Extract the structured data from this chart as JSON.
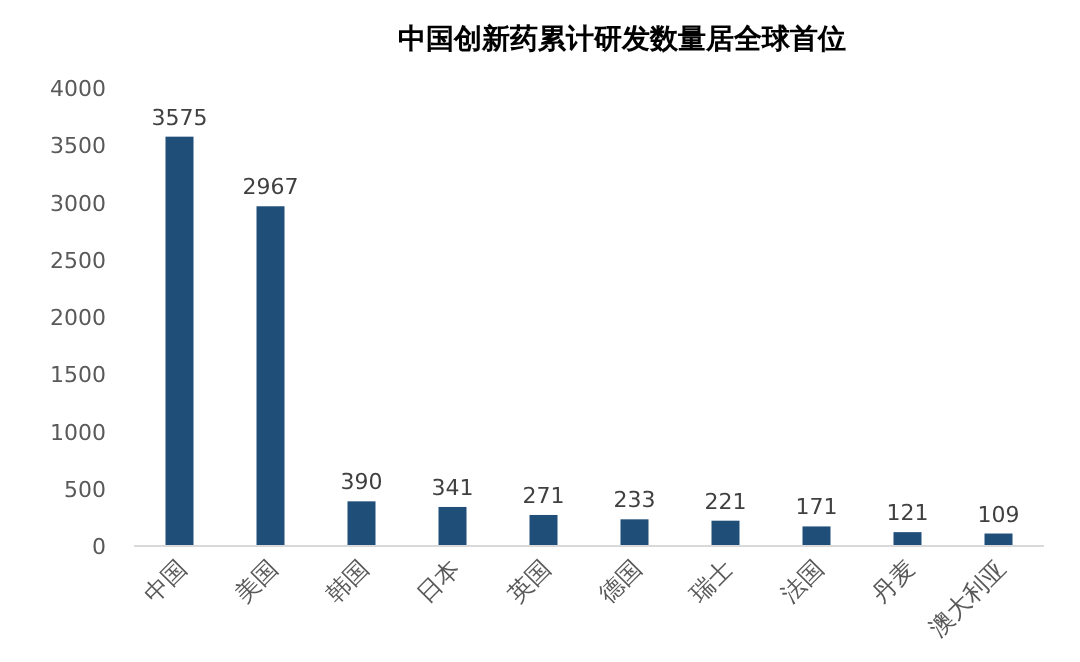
{
  "chart_data": {
    "type": "bar",
    "title": "中国创新药累计研发数量居全球首位",
    "categories": [
      "中国",
      "美国",
      "韩国",
      "日本",
      "英国",
      "德国",
      "瑞士",
      "法国",
      "丹麦",
      "澳大利亚"
    ],
    "values": [
      3575,
      2967,
      390,
      341,
      271,
      233,
      221,
      171,
      121,
      109
    ],
    "color": "#1f4e79",
    "ylim": [
      0,
      4000
    ],
    "yticks": [
      0,
      500,
      1000,
      1500,
      2000,
      2500,
      3000,
      3500,
      4000
    ],
    "data_labels": true,
    "grid": false
  }
}
